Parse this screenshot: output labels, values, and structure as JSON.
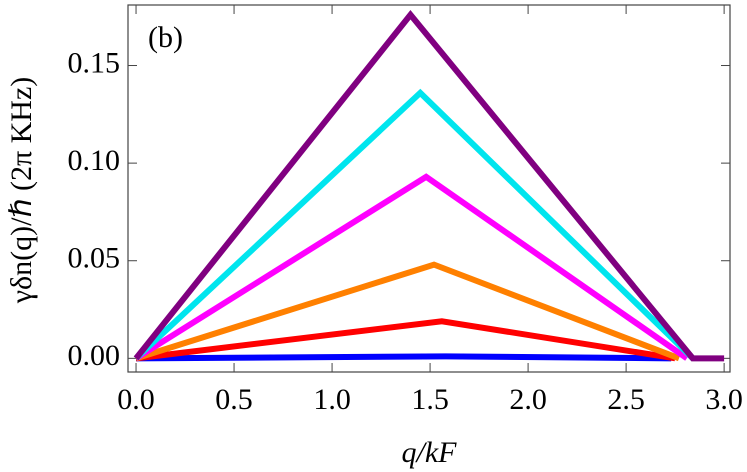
{
  "chart_data": {
    "type": "line",
    "annotation": "(b)",
    "xlabel": "q/kF",
    "ylabel": "γδn(q)/ℏ (2π KHz)",
    "xlim": [
      -0.041,
      3.03
    ],
    "ylim": [
      -0.007,
      0.181
    ],
    "xticks": [
      {
        "value": 0,
        "label": "0.0"
      },
      {
        "value": 0.5,
        "label": "0.5"
      },
      {
        "value": 1,
        "label": "1.0"
      },
      {
        "value": 1.5,
        "label": "1.5"
      },
      {
        "value": 2,
        "label": "2.0"
      },
      {
        "value": 2.5,
        "label": "2.5"
      },
      {
        "value": 3,
        "label": "3.0"
      }
    ],
    "yticks": [
      {
        "value": 0,
        "label": "0.00"
      },
      {
        "value": 0.05,
        "label": "0.05"
      },
      {
        "value": 0.1,
        "label": "0.10"
      },
      {
        "value": 0.15,
        "label": "0.15"
      }
    ],
    "series": [
      {
        "color": "#0000ff",
        "x": [
          0,
          1.58,
          2.73
        ],
        "values": [
          0,
          0.001,
          0
        ]
      },
      {
        "color": "#ff0000",
        "x": [
          0,
          1.56,
          2.75
        ],
        "values": [
          0,
          0.019,
          0
        ]
      },
      {
        "color": "#ff8000",
        "x": [
          0,
          1.52,
          2.77
        ],
        "values": [
          0,
          0.048,
          0
        ]
      },
      {
        "color": "#ff00ff",
        "x": [
          0,
          1.48,
          2.81
        ],
        "values": [
          0,
          0.093,
          0
        ]
      },
      {
        "color": "#00e5ee",
        "x": [
          0,
          1.45,
          2.84
        ],
        "values": [
          0,
          0.136,
          0
        ]
      },
      {
        "color": "#800080",
        "x": [
          0,
          1.4,
          2.84,
          3.0
        ],
        "values": [
          0,
          0.176,
          0,
          0
        ]
      }
    ]
  }
}
